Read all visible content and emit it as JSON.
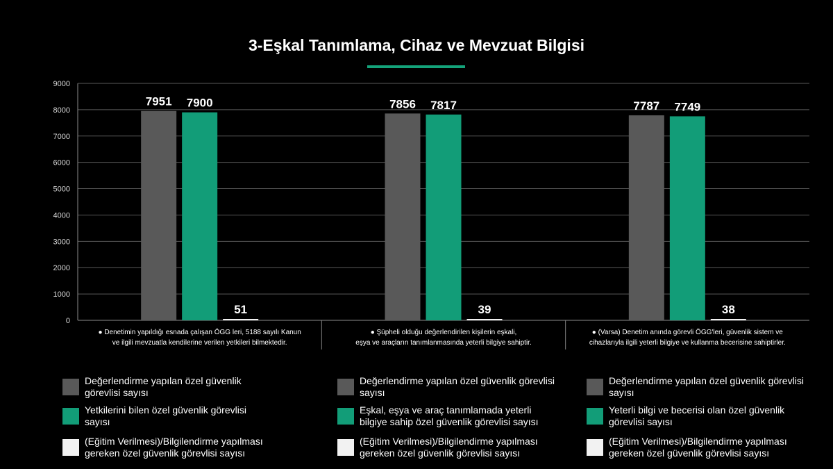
{
  "title": "3-Eşkal Tanımlama, Cihaz ve Mevzuat Bilgisi",
  "colors": {
    "gray": "#595959",
    "green": "#129d78",
    "white": "#f2f2f2",
    "accent": "#14a37a"
  },
  "chart_data": {
    "type": "bar",
    "ylim": [
      0,
      9000
    ],
    "yticks": [
      "0",
      "1000",
      "2000",
      "3000",
      "4000",
      "5000",
      "6000",
      "7000",
      "8000",
      "9000"
    ],
    "grid": true,
    "categories": [
      [
        "● Denetimin yapıldığı esnada çalışan ÖGG leri, 5188 sayılı Kanun",
        "ve ilgili mevzuatla kendilerine verilen yetkileri bilmektedir."
      ],
      [
        "● Şüpheli olduğu değerlendirilen kişilerin eşkali,",
        "eşya ve araçların tanımlanmasında yeterli bilgiye sahiptir."
      ],
      [
        "● (Varsa) Denetim anında görevli ÖGG'leri, güvenlik sistem ve",
        "cihazlarıyla ilgili yeterli bilgiye ve kullanma becerisine sahiptirler."
      ]
    ],
    "groups": [
      {
        "values": [
          7951,
          7900,
          51
        ],
        "labels": [
          "7951",
          "7900",
          "51"
        ]
      },
      {
        "values": [
          7856,
          7817,
          39
        ],
        "labels": [
          "7856",
          "7817",
          "39"
        ]
      },
      {
        "values": [
          7787,
          7749,
          38
        ],
        "labels": [
          "7787",
          "7749",
          "38"
        ]
      }
    ],
    "series_colors": [
      "#595959",
      "#129d78",
      "#f2f2f2"
    ]
  },
  "legends": [
    [
      {
        "color": "#595959",
        "text": "Değerlendirme yapılan  özel güvenlik görevlisi sayısı"
      },
      {
        "color": "#129d78",
        "text": "Yetkilerini bilen özel güvenlik görevlisi sayısı"
      },
      {
        "color": "#f2f2f2",
        "text": "(Eğitim Verilmesi)/Bilgilendirme yapılması gereken özel güvenlik görevlisi sayısı"
      }
    ],
    [
      {
        "color": "#595959",
        "text": "Değerlendirme yapılan  özel güvenlik görevlisi sayısı"
      },
      {
        "color": "#129d78",
        "text": "Eşkal, eşya ve araç tanımlamada  yeterli bilgiye sahip özel güvenlik görevlisi sayısı"
      },
      {
        "color": "#f2f2f2",
        "text": "(Eğitim Verilmesi)/Bilgilendirme yapılması gereken özel güvenlik görevlisi sayısı"
      }
    ],
    [
      {
        "color": "#595959",
        "text": "Değerlendirme yapılan  özel güvenlik görevlisi sayısı"
      },
      {
        "color": "#129d78",
        "text": "Yeterli bilgi ve becerisi olan özel güvenlik görevlisi sayısı"
      },
      {
        "color": "#f2f2f2",
        "text": "(Eğitim Verilmesi)/Bilgilendirme yapılması gereken özel güvenlik görevlisi sayısı"
      }
    ]
  ]
}
